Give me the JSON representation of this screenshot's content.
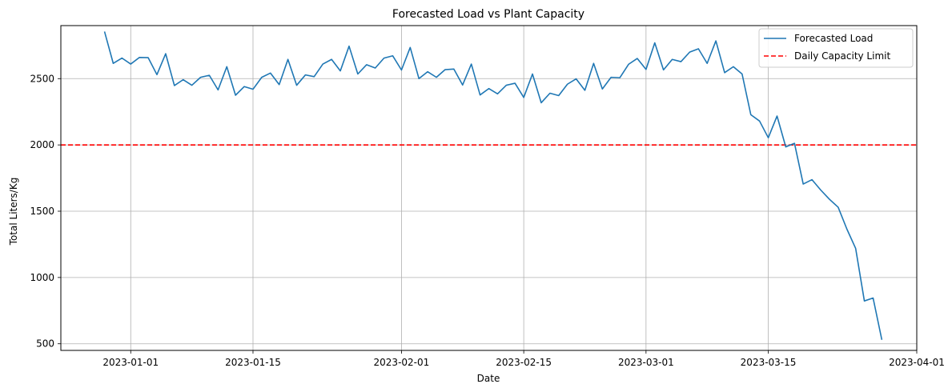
{
  "chart_data": {
    "type": "line",
    "title": "Forecasted Load vs Plant Capacity",
    "xlabel": "Date",
    "ylabel": "Total Liters/Kg",
    "xlim": [
      "2022-12-24",
      "2023-04-01"
    ],
    "ylim": [
      450,
      2900
    ],
    "grid": true,
    "legend_position": "top-right",
    "x_ticks": [
      "2023-01-01",
      "2023-01-15",
      "2023-02-01",
      "2023-02-15",
      "2023-03-01",
      "2023-03-15",
      "2023-04-01"
    ],
    "y_ticks": [
      500,
      1000,
      1500,
      2000,
      2500
    ],
    "series": [
      {
        "name": "Forecasted Load",
        "color": "#1f77b4",
        "style": "solid",
        "start_date": "2022-12-29",
        "step_days": 1,
        "values": [
          2855,
          2615,
          2655,
          2610,
          2660,
          2658,
          2530,
          2688,
          2448,
          2492,
          2450,
          2510,
          2525,
          2415,
          2590,
          2375,
          2440,
          2420,
          2510,
          2542,
          2455,
          2645,
          2450,
          2528,
          2515,
          2610,
          2645,
          2558,
          2745,
          2535,
          2605,
          2580,
          2655,
          2672,
          2565,
          2735,
          2500,
          2552,
          2510,
          2568,
          2572,
          2452,
          2610,
          2377,
          2425,
          2385,
          2450,
          2465,
          2358,
          2535,
          2318,
          2390,
          2372,
          2458,
          2498,
          2412,
          2615,
          2422,
          2510,
          2507,
          2608,
          2652,
          2570,
          2770,
          2566,
          2645,
          2628,
          2700,
          2725,
          2615,
          2785,
          2545,
          2590,
          2535,
          2228,
          2180,
          2054,
          2218,
          1985,
          2012,
          1705,
          1738,
          1660,
          1590,
          1530,
          1365,
          1220,
          823,
          845,
          530
        ]
      },
      {
        "name": "Daily Capacity Limit",
        "color": "#ff0000",
        "style": "dashed",
        "value": 2000
      }
    ]
  }
}
